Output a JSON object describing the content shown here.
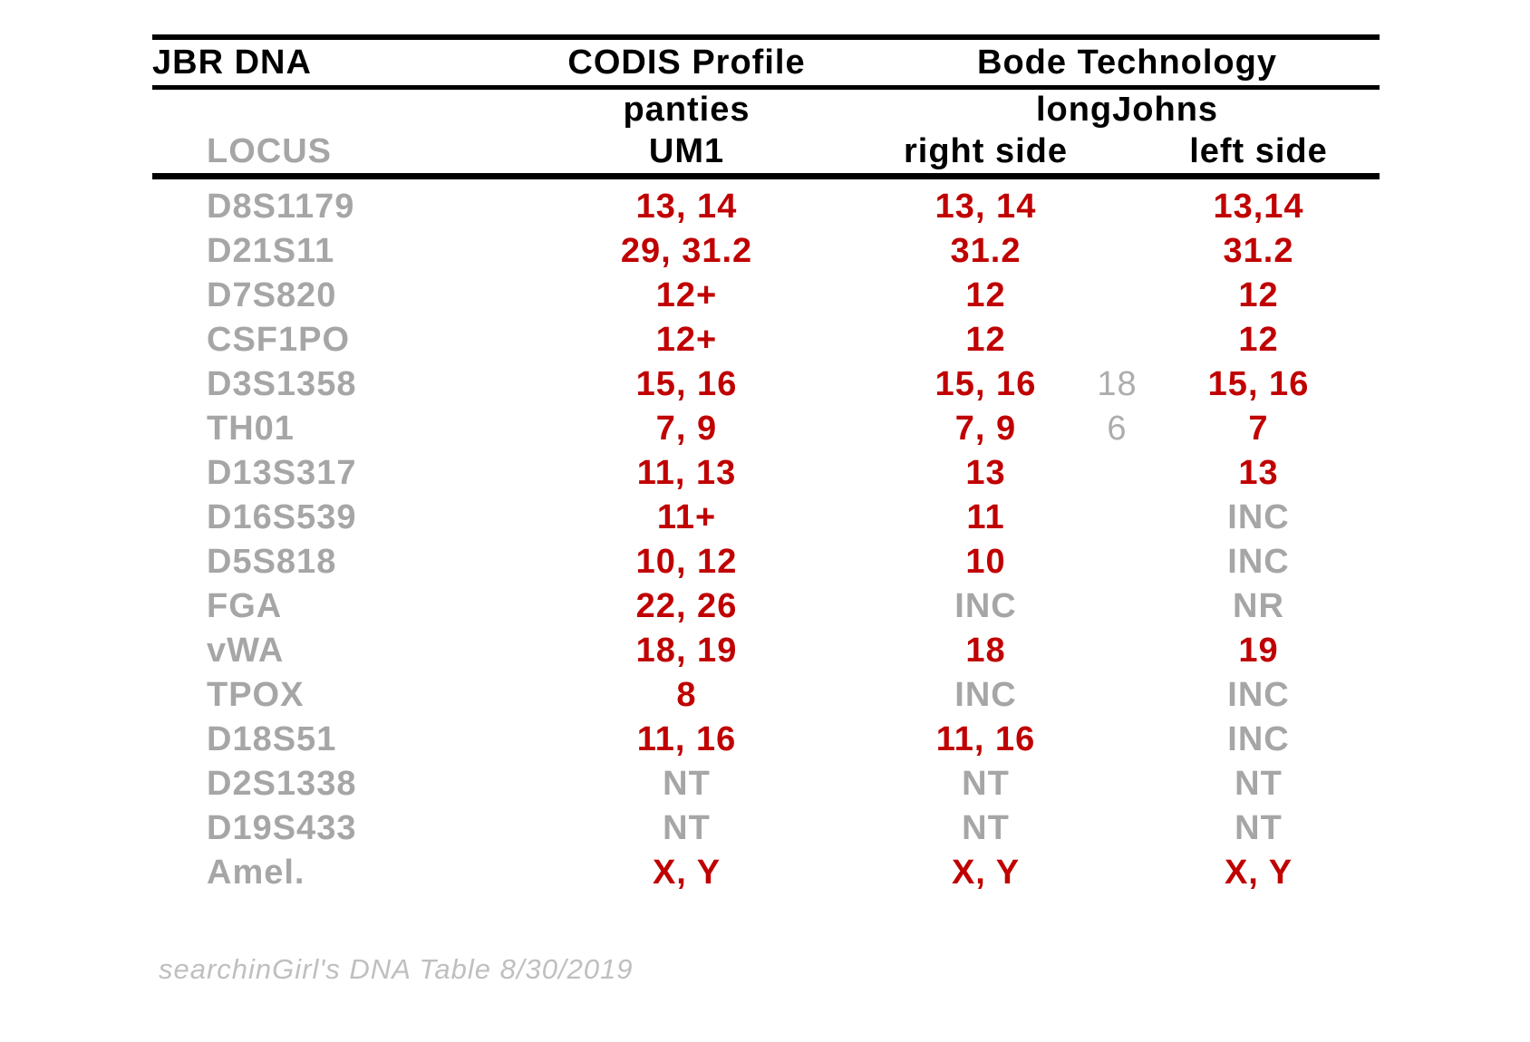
{
  "table": {
    "title": "JBR DNA",
    "group_headers": {
      "codis": "CODIS Profile",
      "bode": "Bode Technology"
    },
    "sample_headers": {
      "panties": "panties",
      "longjohns": "longJohns"
    },
    "column_headers": {
      "locus": "LOCUS",
      "um1": "UM1",
      "right_side": "right side",
      "left_side": "left side"
    },
    "rows": [
      {
        "locus": "D8S1179",
        "um1": {
          "text": "13, 14",
          "tone": "red"
        },
        "right": {
          "text": "13, 14",
          "tone": "red"
        },
        "extra": "",
        "left": {
          "text": "13,14",
          "tone": "red"
        }
      },
      {
        "locus": "D21S11",
        "um1": {
          "text": "29, 31.2",
          "tone": "red"
        },
        "right": {
          "text": "31.2",
          "tone": "red"
        },
        "extra": "",
        "left": {
          "text": "31.2",
          "tone": "red"
        }
      },
      {
        "locus": "D7S820",
        "um1": {
          "text": "12+",
          "tone": "red"
        },
        "right": {
          "text": "12",
          "tone": "red"
        },
        "extra": "",
        "left": {
          "text": "12",
          "tone": "red"
        }
      },
      {
        "locus": "CSF1PO",
        "um1": {
          "text": "12+",
          "tone": "red"
        },
        "right": {
          "text": "12",
          "tone": "red"
        },
        "extra": "",
        "left": {
          "text": "12",
          "tone": "red"
        }
      },
      {
        "locus": "D3S1358",
        "um1": {
          "text": "15, 16",
          "tone": "red"
        },
        "right": {
          "text": "15, 16",
          "tone": "red"
        },
        "extra": "18",
        "left": {
          "text": "15, 16",
          "tone": "red"
        }
      },
      {
        "locus": "TH01",
        "um1": {
          "text": "7, 9",
          "tone": "red"
        },
        "right": {
          "text": "7, 9",
          "tone": "red"
        },
        "extra": "6",
        "left": {
          "text": "7",
          "tone": "red"
        }
      },
      {
        "locus": "D13S317",
        "um1": {
          "text": "11, 13",
          "tone": "red"
        },
        "right": {
          "text": "13",
          "tone": "red"
        },
        "extra": "",
        "left": {
          "text": "13",
          "tone": "red"
        }
      },
      {
        "locus": "D16S539",
        "um1": {
          "text": "11+",
          "tone": "red"
        },
        "right": {
          "text": "11",
          "tone": "red"
        },
        "extra": "",
        "left": {
          "text": "INC",
          "tone": "gray"
        }
      },
      {
        "locus": "D5S818",
        "um1": {
          "text": "10, 12",
          "tone": "red"
        },
        "right": {
          "text": "10",
          "tone": "red"
        },
        "extra": "",
        "left": {
          "text": "INC",
          "tone": "gray"
        }
      },
      {
        "locus": "FGA",
        "um1": {
          "text": "22, 26",
          "tone": "red"
        },
        "right": {
          "text": "INC",
          "tone": "gray"
        },
        "extra": "",
        "left": {
          "text": "NR",
          "tone": "gray"
        }
      },
      {
        "locus": "vWA",
        "um1": {
          "text": "18, 19",
          "tone": "red"
        },
        "right": {
          "text": "18",
          "tone": "red"
        },
        "extra": "",
        "left": {
          "text": "19",
          "tone": "red"
        }
      },
      {
        "locus": "TPOX",
        "um1": {
          "text": "8",
          "tone": "red"
        },
        "right": {
          "text": "INC",
          "tone": "gray"
        },
        "extra": "",
        "left": {
          "text": "INC",
          "tone": "gray"
        }
      },
      {
        "locus": "D18S51",
        "um1": {
          "text": "11, 16",
          "tone": "red"
        },
        "right": {
          "text": "11, 16",
          "tone": "red"
        },
        "extra": "",
        "left": {
          "text": "INC",
          "tone": "gray"
        }
      },
      {
        "locus": "D2S1338",
        "um1": {
          "text": "NT",
          "tone": "gray"
        },
        "right": {
          "text": "NT",
          "tone": "gray"
        },
        "extra": "",
        "left": {
          "text": "NT",
          "tone": "gray"
        }
      },
      {
        "locus": "D19S433",
        "um1": {
          "text": "NT",
          "tone": "gray"
        },
        "right": {
          "text": "NT",
          "tone": "gray"
        },
        "extra": "",
        "left": {
          "text": "NT",
          "tone": "gray"
        }
      },
      {
        "locus": "Amel.",
        "um1": {
          "text": "X, Y",
          "tone": "red"
        },
        "right": {
          "text": "X, Y",
          "tone": "red"
        },
        "extra": "",
        "left": {
          "text": "X, Y",
          "tone": "red"
        }
      }
    ]
  },
  "footer": {
    "caption": "searchinGirl's DNA Table 8/30/2019"
  },
  "colors": {
    "allele_red": "#C00000",
    "label_gray": "#A6A6A6",
    "extra_gray": "#ADADAD",
    "footer_gray": "#BFBFBF",
    "rule_black": "#000000"
  }
}
